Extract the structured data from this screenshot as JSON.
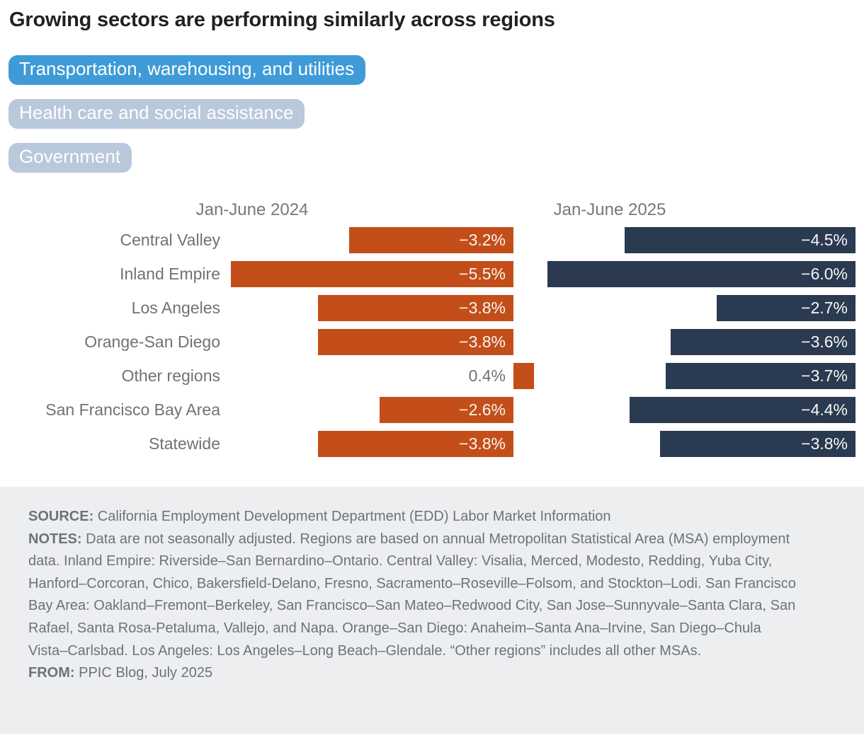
{
  "title": "Growing sectors are performing similarly across regions",
  "tabs": [
    {
      "label": "Transportation, warehousing, and utilities",
      "active": true
    },
    {
      "label": "Health care and social assistance",
      "active": false
    },
    {
      "label": "Government",
      "active": false
    }
  ],
  "chart_data": {
    "type": "bar",
    "orientation": "horizontal",
    "value_format": "percent",
    "title": "Growing sectors are performing similarly across regions",
    "categories": [
      "Central Valley",
      "Inland Empire",
      "Los Angeles",
      "Orange-San Diego",
      "Other regions",
      "San Francisco Bay Area",
      "Statewide"
    ],
    "series": [
      {
        "name": "Jan-June 2024",
        "color": "#C44E19",
        "values": [
          -3.2,
          -5.5,
          -3.8,
          -3.8,
          0.4,
          -2.6,
          -3.8
        ],
        "labels": [
          "−3.2%",
          "−5.5%",
          "−3.8%",
          "−3.8%",
          "0.4%",
          "−2.6%",
          "−3.8%"
        ]
      },
      {
        "name": "Jan-June 2025",
        "color": "#2A3A50",
        "values": [
          -4.5,
          -6.0,
          -2.7,
          -3.6,
          -3.7,
          -4.4,
          -3.8
        ],
        "labels": [
          "−4.5%",
          "−6.0%",
          "−2.7%",
          "−3.6%",
          "−3.7%",
          "−4.4%",
          "−3.8%"
        ]
      }
    ],
    "value_range": [
      -6.5,
      0.5
    ],
    "legend_position": "panel-headers",
    "grid": false
  },
  "colors": {
    "tab_active": "#3E9BD8",
    "tab_inactive": "#B9C8DA",
    "tab_text": "#FFFFFF",
    "bar_2024": "#C44E19",
    "bar_2025": "#2A3A50",
    "footer_bg": "#EDEEF0",
    "muted_text": "#6E7278",
    "header_text": "#75787D",
    "title_text": "#232021"
  },
  "footer": {
    "source_label": "SOURCE:",
    "source_text": "California Employment Development Department (EDD) Labor Market Information",
    "notes_label": "NOTES:",
    "notes_text": "Data are not seasonally adjusted. Regions are based on annual Metropolitan Statistical Area (MSA) employment data. Inland Empire: Riverside–San Bernardino–Ontario. Central Valley: Visalia, Merced, Modesto, Redding, Yuba City, Hanford–Corcoran, Chico, Bakersfield-Delano, Fresno, Sacramento–Roseville–Folsom, and Stockton–Lodi. San Francisco Bay Area: Oakland–Fremont–Berkeley, San Francisco–San Mateo–Redwood City, San Jose–Sunnyvale–Santa Clara, San Rafael, Santa Rosa-Petaluma, Vallejo, and Napa. Orange–San Diego: Anaheim–Santa Ana–Irvine, San Diego–Chula Vista–Carlsbad. Los Angeles: Los Angeles–Long Beach–Glendale. “Other regions” includes all other MSAs.",
    "from_label": "FROM:",
    "from_text": "PPIC Blog, July 2025"
  }
}
